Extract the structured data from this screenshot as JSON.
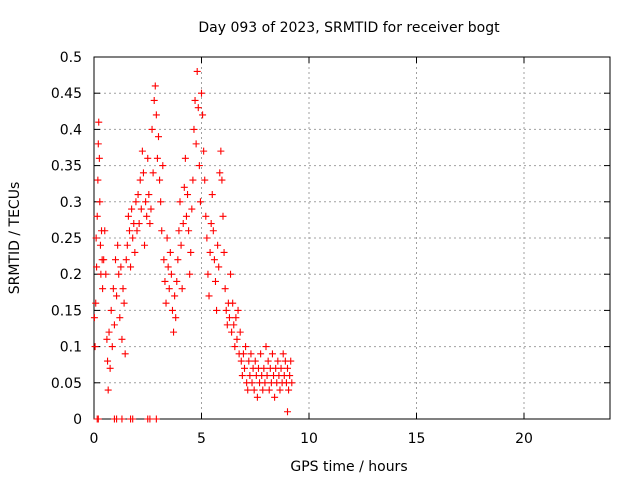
{
  "chart_data": {
    "type": "scatter",
    "title": "Day 093 of 2023, SRMTID for receiver bogt",
    "xlabel": "GPS time / hours",
    "ylabel": "SRMTID / TECUs",
    "xlim": [
      0,
      24
    ],
    "ylim": [
      0,
      0.5
    ],
    "x_ticks": [
      0,
      5,
      10,
      15,
      20
    ],
    "x_tick_labels": [
      "0",
      "5",
      "10",
      "15",
      "20"
    ],
    "y_ticks": [
      0,
      0.05,
      0.1,
      0.15,
      0.2,
      0.25,
      0.3,
      0.35,
      0.4,
      0.45,
      0.5
    ],
    "y_tick_labels": [
      "0",
      "0.05",
      "0.1",
      "0.15",
      "0.2",
      "0.25",
      "0.3",
      "0.35",
      "0.4",
      "0.45",
      "0.5"
    ],
    "grid": true,
    "marker": "+",
    "color": "#ff0000",
    "series": [
      {
        "name": "SRMTID",
        "points": [
          [
            0.02,
            0.14
          ],
          [
            0.05,
            0.1
          ],
          [
            0.08,
            0.16
          ],
          [
            0.1,
            0.25
          ],
          [
            0.12,
            0.21
          ],
          [
            0.15,
            0.28
          ],
          [
            0.18,
            0.33
          ],
          [
            0.2,
            0.38
          ],
          [
            0.22,
            0.41
          ],
          [
            0.25,
            0.36
          ],
          [
            0.27,
            0.3
          ],
          [
            0.3,
            0.24
          ],
          [
            0.32,
            0.2
          ],
          [
            0.35,
            0.26
          ],
          [
            0.38,
            0.22
          ],
          [
            0.4,
            0.18
          ],
          [
            0.45,
            0.22
          ],
          [
            0.5,
            0.26
          ],
          [
            0.55,
            0.2
          ],
          [
            0.6,
            0.11
          ],
          [
            0.63,
            0.08
          ],
          [
            0.66,
            0.04
          ],
          [
            0.7,
            0.12
          ],
          [
            0.75,
            0.07
          ],
          [
            0.8,
            0.15
          ],
          [
            0.85,
            0.1
          ],
          [
            0.9,
            0.18
          ],
          [
            0.95,
            0.13
          ],
          [
            1.0,
            0.22
          ],
          [
            1.05,
            0.17
          ],
          [
            1.1,
            0.24
          ],
          [
            1.15,
            0.2
          ],
          [
            1.2,
            0.14
          ],
          [
            1.25,
            0.21
          ],
          [
            1.3,
            0.11
          ],
          [
            1.35,
            0.18
          ],
          [
            1.4,
            0.16
          ],
          [
            1.45,
            0.09
          ],
          [
            1.5,
            0.22
          ],
          [
            1.55,
            0.24
          ],
          [
            1.6,
            0.28
          ],
          [
            1.65,
            0.26
          ],
          [
            1.7,
            0.21
          ],
          [
            1.75,
            0.29
          ],
          [
            1.8,
            0.25
          ],
          [
            1.85,
            0.27
          ],
          [
            1.9,
            0.23
          ],
          [
            1.95,
            0.3
          ],
          [
            2.0,
            0.26
          ],
          [
            2.05,
            0.31
          ],
          [
            2.1,
            0.27
          ],
          [
            2.15,
            0.33
          ],
          [
            2.2,
            0.29
          ],
          [
            2.25,
            0.37
          ],
          [
            2.3,
            0.34
          ],
          [
            2.35,
            0.24
          ],
          [
            2.4,
            0.3
          ],
          [
            2.45,
            0.28
          ],
          [
            2.5,
            0.36
          ],
          [
            2.55,
            0.31
          ],
          [
            2.6,
            0.27
          ],
          [
            2.65,
            0.29
          ],
          [
            2.7,
            0.4
          ],
          [
            2.75,
            0.34
          ],
          [
            2.8,
            0.44
          ],
          [
            2.85,
            0.46
          ],
          [
            2.9,
            0.42
          ],
          [
            2.95,
            0.36
          ],
          [
            3.0,
            0.39
          ],
          [
            3.05,
            0.33
          ],
          [
            3.1,
            0.3
          ],
          [
            3.15,
            0.26
          ],
          [
            3.2,
            0.35
          ],
          [
            3.25,
            0.22
          ],
          [
            3.3,
            0.19
          ],
          [
            3.35,
            0.16
          ],
          [
            3.4,
            0.25
          ],
          [
            3.45,
            0.21
          ],
          [
            3.5,
            0.18
          ],
          [
            3.55,
            0.23
          ],
          [
            3.6,
            0.2
          ],
          [
            3.65,
            0.15
          ],
          [
            3.7,
            0.12
          ],
          [
            3.75,
            0.17
          ],
          [
            3.8,
            0.14
          ],
          [
            3.85,
            0.19
          ],
          [
            3.9,
            0.22
          ],
          [
            3.95,
            0.26
          ],
          [
            4.0,
            0.3
          ],
          [
            4.05,
            0.24
          ],
          [
            4.1,
            0.18
          ],
          [
            4.15,
            0.27
          ],
          [
            4.2,
            0.32
          ],
          [
            4.25,
            0.36
          ],
          [
            4.3,
            0.28
          ],
          [
            4.35,
            0.31
          ],
          [
            4.4,
            0.26
          ],
          [
            4.45,
            0.2
          ],
          [
            4.5,
            0.23
          ],
          [
            4.55,
            0.29
          ],
          [
            4.6,
            0.33
          ],
          [
            4.65,
            0.4
          ],
          [
            4.7,
            0.44
          ],
          [
            4.75,
            0.38
          ],
          [
            4.8,
            0.48
          ],
          [
            4.85,
            0.43
          ],
          [
            4.9,
            0.35
          ],
          [
            4.95,
            0.3
          ],
          [
            5.0,
            0.45
          ],
          [
            5.05,
            0.42
          ],
          [
            5.1,
            0.37
          ],
          [
            5.15,
            0.33
          ],
          [
            5.2,
            0.28
          ],
          [
            5.25,
            0.25
          ],
          [
            5.3,
            0.2
          ],
          [
            5.35,
            0.17
          ],
          [
            5.4,
            0.23
          ],
          [
            5.45,
            0.27
          ],
          [
            5.5,
            0.31
          ],
          [
            5.55,
            0.26
          ],
          [
            5.6,
            0.22
          ],
          [
            5.65,
            0.19
          ],
          [
            5.7,
            0.15
          ],
          [
            5.75,
            0.24
          ],
          [
            5.8,
            0.21
          ],
          [
            5.85,
            0.34
          ],
          [
            5.9,
            0.37
          ],
          [
            5.95,
            0.33
          ],
          [
            6.0,
            0.28
          ],
          [
            6.05,
            0.23
          ],
          [
            6.1,
            0.18
          ],
          [
            6.15,
            0.15
          ],
          [
            6.2,
            0.13
          ],
          [
            6.25,
            0.16
          ],
          [
            6.3,
            0.14
          ],
          [
            6.35,
            0.2
          ],
          [
            6.4,
            0.12
          ],
          [
            6.45,
            0.16
          ],
          [
            6.5,
            0.13
          ],
          [
            6.55,
            0.1
          ],
          [
            6.6,
            0.14
          ],
          [
            6.65,
            0.11
          ],
          [
            6.7,
            0.15
          ],
          [
            6.75,
            0.09
          ],
          [
            6.8,
            0.12
          ],
          [
            6.85,
            0.08
          ],
          [
            6.9,
            0.06
          ],
          [
            6.95,
            0.09
          ],
          [
            7.0,
            0.07
          ],
          [
            7.05,
            0.1
          ],
          [
            7.1,
            0.05
          ],
          [
            7.15,
            0.04
          ],
          [
            7.2,
            0.08
          ],
          [
            7.25,
            0.06
          ],
          [
            7.3,
            0.09
          ],
          [
            7.35,
            0.05
          ],
          [
            7.4,
            0.07
          ],
          [
            7.45,
            0.04
          ],
          [
            7.5,
            0.08
          ],
          [
            7.55,
            0.06
          ],
          [
            7.6,
            0.03
          ],
          [
            7.65,
            0.07
          ],
          [
            7.7,
            0.05
          ],
          [
            7.75,
            0.09
          ],
          [
            7.8,
            0.06
          ],
          [
            7.85,
            0.04
          ],
          [
            7.9,
            0.07
          ],
          [
            7.95,
            0.05
          ],
          [
            8.0,
            0.1
          ],
          [
            8.05,
            0.06
          ],
          [
            8.1,
            0.08
          ],
          [
            8.15,
            0.04
          ],
          [
            8.2,
            0.07
          ],
          [
            8.25,
            0.05
          ],
          [
            8.3,
            0.09
          ],
          [
            8.35,
            0.06
          ],
          [
            8.4,
            0.03
          ],
          [
            8.45,
            0.07
          ],
          [
            8.5,
            0.05
          ],
          [
            8.55,
            0.08
          ],
          [
            8.6,
            0.06
          ],
          [
            8.65,
            0.04
          ],
          [
            8.7,
            0.07
          ],
          [
            8.75,
            0.05
          ],
          [
            8.8,
            0.09
          ],
          [
            8.85,
            0.06
          ],
          [
            8.9,
            0.08
          ],
          [
            8.95,
            0.05
          ],
          [
            9.0,
            0.07
          ],
          [
            9.05,
            0.04
          ],
          [
            9.1,
            0.06
          ],
          [
            9.15,
            0.08
          ],
          [
            9.2,
            0.05
          ],
          [
            9.0,
            0.01
          ],
          [
            0.15,
            0.0
          ],
          [
            0.2,
            0.0
          ],
          [
            0.95,
            0.0
          ],
          [
            1.05,
            0.0
          ],
          [
            1.3,
            0.0
          ],
          [
            1.7,
            0.0
          ],
          [
            1.8,
            0.0
          ],
          [
            2.5,
            0.0
          ],
          [
            2.6,
            0.0
          ],
          [
            2.9,
            0.0
          ]
        ]
      }
    ]
  }
}
